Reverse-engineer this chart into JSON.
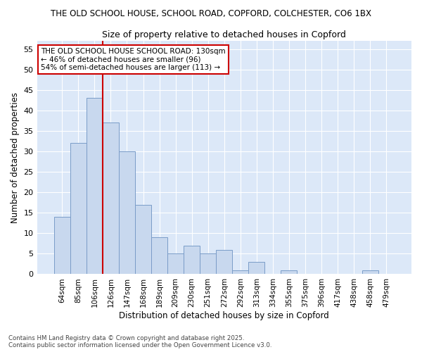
{
  "title_line1": "THE OLD SCHOOL HOUSE, SCHOOL ROAD, COPFORD, COLCHESTER, CO6 1BX",
  "title_line2": "Size of property relative to detached houses in Copford",
  "xlabel": "Distribution of detached houses by size in Copford",
  "ylabel": "Number of detached properties",
  "categories": [
    "64sqm",
    "85sqm",
    "106sqm",
    "126sqm",
    "147sqm",
    "168sqm",
    "189sqm",
    "209sqm",
    "230sqm",
    "251sqm",
    "272sqm",
    "292sqm",
    "313sqm",
    "334sqm",
    "355sqm",
    "375sqm",
    "396sqm",
    "417sqm",
    "438sqm",
    "458sqm",
    "479sqm"
  ],
  "values": [
    14,
    32,
    43,
    37,
    30,
    17,
    9,
    5,
    7,
    5,
    6,
    1,
    3,
    0,
    1,
    0,
    0,
    0,
    0,
    1,
    0
  ],
  "bar_color": "#c8d8ee",
  "bar_edge_color": "#7a9cc8",
  "plot_bg_color": "#dce8f8",
  "figure_bg_color": "#ffffff",
  "grid_color": "#ffffff",
  "vline_position": 2.5,
  "vline_color": "#cc0000",
  "annotation_text": "THE OLD SCHOOL HOUSE SCHOOL ROAD: 130sqm\n← 46% of detached houses are smaller (96)\n54% of semi-detached houses are larger (113) →",
  "annotation_box_facecolor": "#ffffff",
  "annotation_box_edgecolor": "#cc0000",
  "ylim": [
    0,
    57
  ],
  "yticks": [
    0,
    5,
    10,
    15,
    20,
    25,
    30,
    35,
    40,
    45,
    50,
    55
  ],
  "footer_line1": "Contains HM Land Registry data © Crown copyright and database right 2025.",
  "footer_line2": "Contains public sector information licensed under the Open Government Licence v3.0."
}
